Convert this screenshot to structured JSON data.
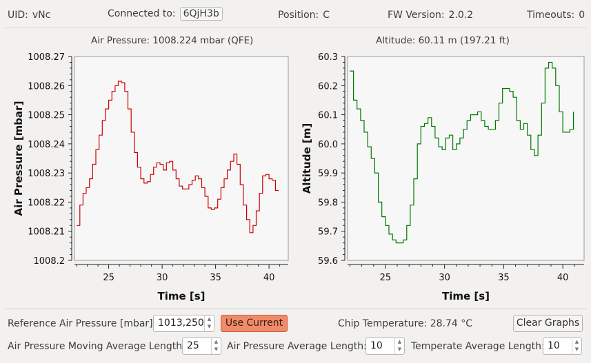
{
  "status": {
    "uid_label": "UID:",
    "uid_value": "vNc",
    "connected_label": "Connected to:",
    "connected_value": "6QjH3b",
    "position_label": "Position:",
    "position_value": "C",
    "fw_label": "FW Version:",
    "fw_value": "2.0.2",
    "timeouts_label": "Timeouts:",
    "timeouts_value": "0"
  },
  "plots": {
    "pressure_title": "Air Pressure: 1008.224 mbar (QFE)",
    "altitude_title": "Altitude: 60.11 m (197.21 ft)"
  },
  "chart_data": [
    {
      "type": "line",
      "xlabel": "Time [s]",
      "ylabel": "Air Pressure [mbar]",
      "xlim": [
        21.8,
        41.8
      ],
      "ylim": [
        1008.2,
        1008.27
      ],
      "xticks": [
        "25",
        "30",
        "35",
        "40"
      ],
      "yticks": [
        "1008.27",
        "1008.26",
        "1008.25",
        "1008.24",
        "1008.23",
        "1008.22",
        "1008.21",
        "1008.2"
      ],
      "color": "#cc0000",
      "x": [
        22.0,
        22.3,
        22.6,
        22.9,
        23.2,
        23.5,
        23.8,
        24.1,
        24.4,
        24.7,
        25.0,
        25.3,
        25.6,
        25.9,
        26.2,
        26.5,
        26.8,
        27.1,
        27.4,
        27.7,
        28.0,
        28.3,
        28.6,
        28.9,
        29.2,
        29.5,
        29.8,
        30.1,
        30.4,
        30.7,
        31.0,
        31.3,
        31.6,
        31.9,
        32.2,
        32.5,
        32.8,
        33.1,
        33.4,
        33.7,
        34.0,
        34.3,
        34.6,
        34.9,
        35.2,
        35.5,
        35.8,
        36.1,
        36.4,
        36.7,
        37.0,
        37.3,
        37.6,
        37.9,
        38.2,
        38.5,
        38.8,
        39.1,
        39.4,
        39.7,
        40.0,
        40.3,
        40.6,
        40.9
      ],
      "values": [
        1008.212,
        1008.219,
        1008.223,
        1008.225,
        1008.228,
        1008.233,
        1008.238,
        1008.243,
        1008.248,
        1008.252,
        1008.255,
        1008.258,
        1008.26,
        1008.2615,
        1008.261,
        1008.258,
        1008.252,
        1008.244,
        1008.237,
        1008.232,
        1008.228,
        1008.2265,
        1008.227,
        1008.2295,
        1008.232,
        1008.2335,
        1008.233,
        1008.231,
        1008.2335,
        1008.234,
        1008.231,
        1008.228,
        1008.2255,
        1008.2245,
        1008.2245,
        1008.226,
        1008.2275,
        1008.229,
        1008.228,
        1008.225,
        1008.222,
        1008.218,
        1008.2175,
        1008.218,
        1008.221,
        1008.225,
        1008.228,
        1008.231,
        1008.234,
        1008.2365,
        1008.233,
        1008.226,
        1008.219,
        1008.214,
        1008.2095,
        1008.212,
        1008.217,
        1008.223,
        1008.229,
        1008.2295,
        1008.228,
        1008.2275,
        1008.224,
        1008.224
      ]
    },
    {
      "type": "line",
      "xlabel": "Time [s]",
      "ylabel": "Altitude [m]",
      "xlim": [
        21.8,
        41.8
      ],
      "ylim": [
        59.6,
        60.3
      ],
      "xticks": [
        "25",
        "30",
        "35",
        "40"
      ],
      "yticks": [
        "60.3",
        "60.2",
        "60.1",
        "60.0",
        "59.9",
        "59.8",
        "59.7",
        "59.6"
      ],
      "color": "#007700",
      "x": [
        22.0,
        22.3,
        22.6,
        22.9,
        23.2,
        23.5,
        23.8,
        24.1,
        24.4,
        24.7,
        25.0,
        25.3,
        25.6,
        25.9,
        26.2,
        26.5,
        26.8,
        27.1,
        27.4,
        27.7,
        28.0,
        28.3,
        28.6,
        28.9,
        29.2,
        29.5,
        29.8,
        30.1,
        30.4,
        30.7,
        31.0,
        31.3,
        31.6,
        31.9,
        32.2,
        32.5,
        32.8,
        33.1,
        33.4,
        33.7,
        34.0,
        34.3,
        34.6,
        34.9,
        35.2,
        35.5,
        35.8,
        36.1,
        36.4,
        36.7,
        37.0,
        37.3,
        37.6,
        37.9,
        38.2,
        38.5,
        38.8,
        39.1,
        39.4,
        39.7,
        40.0,
        40.3,
        40.6,
        40.9
      ],
      "values": [
        60.25,
        60.15,
        60.12,
        60.08,
        60.04,
        59.99,
        59.95,
        59.9,
        59.8,
        59.75,
        59.72,
        59.69,
        59.67,
        59.66,
        59.66,
        59.67,
        59.72,
        59.79,
        59.88,
        60.0,
        60.06,
        60.07,
        60.09,
        60.06,
        60.02,
        59.99,
        59.98,
        60.02,
        60.03,
        59.98,
        60.0,
        60.02,
        60.05,
        60.08,
        60.1,
        60.1,
        60.11,
        60.08,
        60.06,
        60.05,
        60.05,
        60.08,
        60.14,
        60.19,
        60.19,
        60.18,
        60.16,
        60.08,
        60.05,
        60.07,
        60.03,
        59.98,
        59.96,
        60.03,
        60.14,
        60.26,
        60.28,
        60.26,
        60.2,
        60.11,
        60.04,
        60.04,
        60.05,
        60.11
      ]
    }
  ],
  "controls": {
    "ref_label": "Reference Air Pressure [mbar]:",
    "ref_value": "1013,250",
    "use_current": "Use Current",
    "chip_temp": "Chip Temperature: 28.74 °C",
    "clear_graphs": "Clear Graphs",
    "mov_avg_label": "Air Pressure Moving Average Length:",
    "mov_avg_value": "25",
    "avg_label": "Air Pressure Average Length:",
    "avg_value": "10",
    "temp_avg_label": "Temperate Average Length:",
    "temp_avg_value": "10"
  },
  "icons": {
    "spin_up": "▲",
    "spin_down": "▼"
  }
}
